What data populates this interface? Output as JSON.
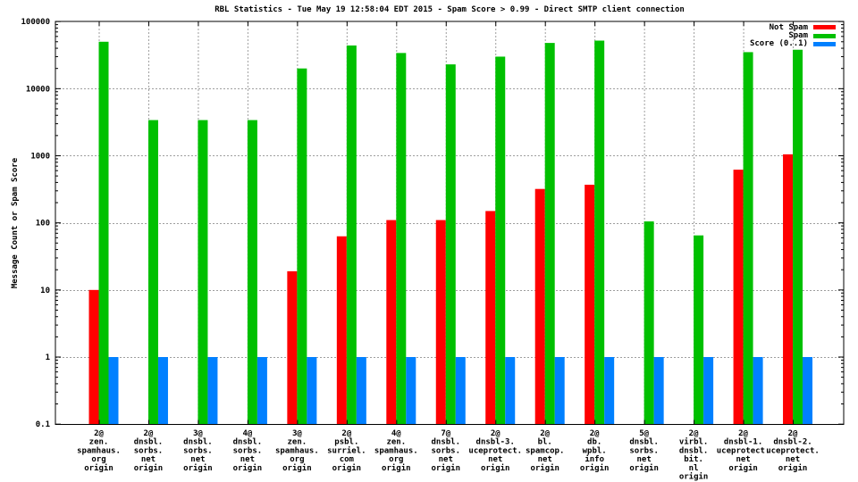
{
  "title": "RBL Statistics - Tue May 19 12:58:04 EDT 2015 - Spam Score > 0.99 - Direct SMTP client connection",
  "chart_data": {
    "type": "bar",
    "title": "RBL Statistics - Tue May 19 12:58:04 EDT 2015 - Spam Score > 0.99 - Direct SMTP client connection",
    "xlabel": "",
    "ylabel": "Message Count or Spam Score",
    "yscale": "log",
    "ylim": [
      0.1,
      100000
    ],
    "ytick_labels": [
      "0.1",
      "1",
      "10",
      "100",
      "1000",
      "10000",
      "100000"
    ],
    "grid": true,
    "legend_position": "top-right",
    "colors": {
      "not_spam": "#ff0000",
      "spam": "#00c000",
      "score": "#0080ff",
      "grid": "#9e9e9e",
      "axis": "#000000"
    },
    "categories": [
      [
        "2@",
        "zen.",
        "spamhaus.",
        "org",
        "origin"
      ],
      [
        "2@",
        "dnsbl.",
        "sorbs.",
        "net",
        "origin"
      ],
      [
        "3@",
        "dnsbl.",
        "sorbs.",
        "net",
        "origin"
      ],
      [
        "4@",
        "dnsbl.",
        "sorbs.",
        "net",
        "origin"
      ],
      [
        "3@",
        "zen.",
        "spamhaus.",
        "org",
        "origin"
      ],
      [
        "2@",
        "psbl.",
        "surriel.",
        "com",
        "origin"
      ],
      [
        "4@",
        "zen.",
        "spamhaus.",
        "org",
        "origin"
      ],
      [
        "7@",
        "dnsbl.",
        "sorbs.",
        "net",
        "origin"
      ],
      [
        "2@",
        "dnsbl-3.",
        "uceprotect.",
        "net",
        "origin"
      ],
      [
        "2@",
        "bl.",
        "spamcop.",
        "net",
        "origin"
      ],
      [
        "2@",
        "db.",
        "wpbl.",
        "info",
        "origin"
      ],
      [
        "5@",
        "dnsbl.",
        "sorbs.",
        "net",
        "origin"
      ],
      [
        "2@",
        "virbl.",
        "dnsbl.",
        "bit.",
        "nl",
        "origin"
      ],
      [
        "2@",
        "dnsbl-1.",
        "uceprotect.",
        "net",
        "origin"
      ],
      [
        "2@",
        "dnsbl-2.",
        "uceprotect.",
        "net",
        "origin"
      ]
    ],
    "series": [
      {
        "name": "Not Spam",
        "color": "#ff0000",
        "values": [
          10,
          null,
          null,
          null,
          19,
          63,
          110,
          110,
          150,
          320,
          370,
          null,
          null,
          620,
          1050
        ]
      },
      {
        "name": "Spam",
        "color": "#00c000",
        "values": [
          50000,
          3400,
          3400,
          3400,
          20000,
          44000,
          34000,
          23000,
          30000,
          48000,
          52000,
          105,
          65,
          35000,
          38000
        ]
      },
      {
        "name": "Score (0..1)",
        "color": "#0080ff",
        "values": [
          1,
          1,
          1,
          1,
          1,
          1,
          1,
          1,
          1,
          1,
          1,
          1,
          1,
          1,
          1
        ]
      }
    ]
  }
}
